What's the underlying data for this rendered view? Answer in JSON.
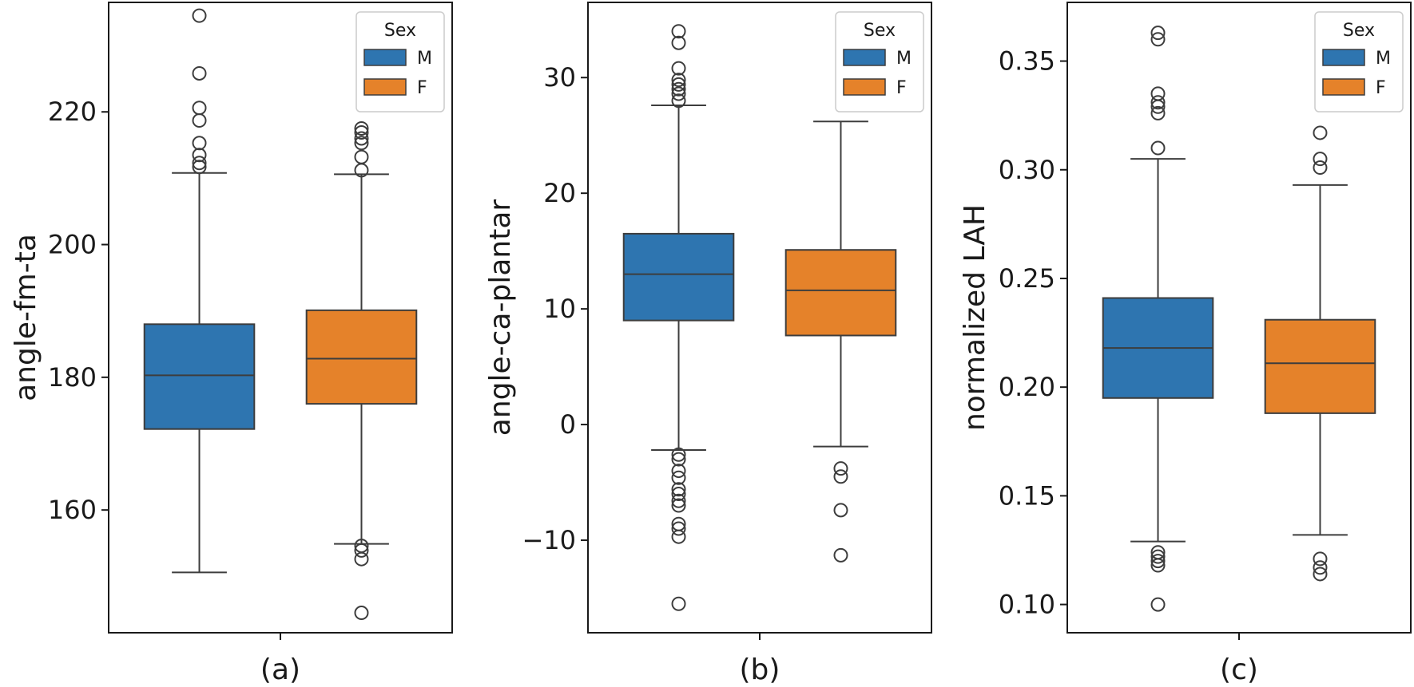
{
  "figure": {
    "colors": {
      "M": "#2e75b0",
      "F": "#e5822a",
      "stroke": "#3d3d3d",
      "frame": "#1a1a1a"
    }
  },
  "chart_data": [
    {
      "type": "box",
      "caption": "(a)",
      "ylabel": "angle-fm-ta",
      "ylim": [
        141.5,
        236.5
      ],
      "yticks": [
        160,
        180,
        200,
        220
      ],
      "tick_labels": [
        "160",
        "180",
        "200",
        "220"
      ],
      "legend": {
        "title": "Sex",
        "entries": [
          "M",
          "F"
        ],
        "position": "top-right"
      },
      "series": [
        {
          "name": "M",
          "q1": 172.2,
          "median": 180.3,
          "q3": 188.0,
          "whisker_low": 150.6,
          "whisker_high": 210.8,
          "outliers": [
            211.7,
            212.3,
            213.5,
            215.3,
            218.7,
            220.6,
            225.8,
            234.5
          ]
        },
        {
          "name": "F",
          "q1": 176.0,
          "median": 182.8,
          "q3": 190.1,
          "whisker_low": 154.9,
          "whisker_high": 210.6,
          "outliers": [
            144.5,
            152.6,
            153.9,
            154.6,
            211.2,
            213.2,
            215.3,
            216.0,
            216.9,
            217.5
          ]
        }
      ]
    },
    {
      "type": "box",
      "caption": "(b)",
      "ylabel": "angle-ca-plantar",
      "ylim": [
        -18.0,
        36.5
      ],
      "yticks": [
        -10,
        0,
        10,
        20,
        30
      ],
      "tick_labels": [
        "−10",
        "0",
        "10",
        "20",
        "30"
      ],
      "legend": {
        "title": "Sex",
        "entries": [
          "M",
          "F"
        ],
        "position": "top-right"
      },
      "series": [
        {
          "name": "M",
          "q1": 9.0,
          "median": 13.0,
          "q3": 16.5,
          "whisker_low": -2.2,
          "whisker_high": 27.6,
          "outliers": [
            -15.5,
            -9.7,
            -9.0,
            -8.6,
            -7.0,
            -6.6,
            -6.0,
            -5.6,
            -4.6,
            -4.0,
            -3.0,
            -2.6,
            28.0,
            28.6,
            29.0,
            29.4,
            29.8,
            30.8,
            33.0,
            34.0
          ]
        },
        {
          "name": "F",
          "q1": 7.7,
          "median": 11.6,
          "q3": 15.1,
          "whisker_low": -1.9,
          "whisker_high": 26.2,
          "outliers": [
            -11.3,
            -7.4,
            -4.5,
            -3.8
          ]
        }
      ]
    },
    {
      "type": "box",
      "caption": "(c)",
      "ylabel": "normalized LAH",
      "ylim": [
        0.087,
        0.377
      ],
      "yticks": [
        0.1,
        0.15,
        0.2,
        0.25,
        0.3,
        0.35
      ],
      "tick_labels": [
        "0.10",
        "0.15",
        "0.20",
        "0.25",
        "0.30",
        "0.35"
      ],
      "legend": {
        "title": "Sex",
        "entries": [
          "M",
          "F"
        ],
        "position": "top-right"
      },
      "series": [
        {
          "name": "M",
          "q1": 0.195,
          "median": 0.218,
          "q3": 0.241,
          "whisker_low": 0.129,
          "whisker_high": 0.305,
          "outliers": [
            0.1,
            0.118,
            0.12,
            0.122,
            0.124,
            0.31,
            0.326,
            0.329,
            0.331,
            0.335,
            0.36,
            0.363
          ]
        },
        {
          "name": "F",
          "q1": 0.188,
          "median": 0.211,
          "q3": 0.231,
          "whisker_low": 0.132,
          "whisker_high": 0.293,
          "outliers": [
            0.114,
            0.117,
            0.121,
            0.301,
            0.305,
            0.317
          ]
        }
      ]
    }
  ]
}
